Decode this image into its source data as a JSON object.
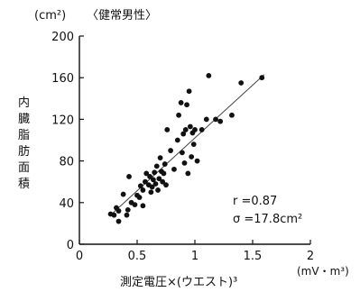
{
  "chart_data": {
    "type": "scatter",
    "title": "〈健常男性〉",
    "ylabel_unit": "(cm²)",
    "ylabel": "内臓脂肪面積",
    "xlabel": "測定電圧×(ウエスト)³",
    "xlabel_unit": "(mV・m³)",
    "xlim": [
      0,
      2
    ],
    "ylim": [
      0,
      200
    ],
    "xticks": [
      "0",
      "0.5",
      "1",
      "1.5",
      "2"
    ],
    "yticks": [
      "0",
      "40",
      "80",
      "120",
      "160",
      "200"
    ],
    "annotations": {
      "r": "r =0.87",
      "sigma": "σ =17.8cm²"
    },
    "regression": {
      "x": [
        0.27,
        1.6
      ],
      "y": [
        28,
        163
      ]
    },
    "points": [
      {
        "x": 0.27,
        "y": 29
      },
      {
        "x": 0.3,
        "y": 28
      },
      {
        "x": 0.32,
        "y": 35
      },
      {
        "x": 0.34,
        "y": 22
      },
      {
        "x": 0.34,
        "y": 32
      },
      {
        "x": 0.38,
        "y": 48
      },
      {
        "x": 0.41,
        "y": 28
      },
      {
        "x": 0.42,
        "y": 33
      },
      {
        "x": 0.43,
        "y": 65
      },
      {
        "x": 0.45,
        "y": 40
      },
      {
        "x": 0.48,
        "y": 38
      },
      {
        "x": 0.5,
        "y": 47
      },
      {
        "x": 0.52,
        "y": 45
      },
      {
        "x": 0.53,
        "y": 56
      },
      {
        "x": 0.55,
        "y": 37
      },
      {
        "x": 0.55,
        "y": 52
      },
      {
        "x": 0.57,
        "y": 60
      },
      {
        "x": 0.58,
        "y": 68
      },
      {
        "x": 0.6,
        "y": 57
      },
      {
        "x": 0.61,
        "y": 65
      },
      {
        "x": 0.62,
        "y": 50
      },
      {
        "x": 0.63,
        "y": 55
      },
      {
        "x": 0.64,
        "y": 62
      },
      {
        "x": 0.65,
        "y": 69
      },
      {
        "x": 0.66,
        "y": 58
      },
      {
        "x": 0.67,
        "y": 75
      },
      {
        "x": 0.68,
        "y": 52
      },
      {
        "x": 0.69,
        "y": 63
      },
      {
        "x": 0.7,
        "y": 83
      },
      {
        "x": 0.71,
        "y": 70
      },
      {
        "x": 0.72,
        "y": 60
      },
      {
        "x": 0.73,
        "y": 68
      },
      {
        "x": 0.74,
        "y": 77
      },
      {
        "x": 0.75,
        "y": 57
      },
      {
        "x": 0.76,
        "y": 110
      },
      {
        "x": 0.79,
        "y": 90
      },
      {
        "x": 0.82,
        "y": 72
      },
      {
        "x": 0.85,
        "y": 100
      },
      {
        "x": 0.86,
        "y": 124
      },
      {
        "x": 0.88,
        "y": 136
      },
      {
        "x": 0.89,
        "y": 88
      },
      {
        "x": 0.9,
        "y": 106
      },
      {
        "x": 0.91,
        "y": 78
      },
      {
        "x": 0.92,
        "y": 110
      },
      {
        "x": 0.93,
        "y": 134
      },
      {
        "x": 0.94,
        "y": 68
      },
      {
        "x": 0.95,
        "y": 147
      },
      {
        "x": 0.96,
        "y": 113
      },
      {
        "x": 0.97,
        "y": 84
      },
      {
        "x": 0.98,
        "y": 107
      },
      {
        "x": 0.99,
        "y": 96
      },
      {
        "x": 1.0,
        "y": 110
      },
      {
        "x": 1.02,
        "y": 80
      },
      {
        "x": 1.06,
        "y": 110
      },
      {
        "x": 1.1,
        "y": 120
      },
      {
        "x": 1.12,
        "y": 162
      },
      {
        "x": 1.18,
        "y": 120
      },
      {
        "x": 1.22,
        "y": 118
      },
      {
        "x": 1.32,
        "y": 124
      },
      {
        "x": 1.4,
        "y": 155
      },
      {
        "x": 1.58,
        "y": 160
      }
    ]
  }
}
